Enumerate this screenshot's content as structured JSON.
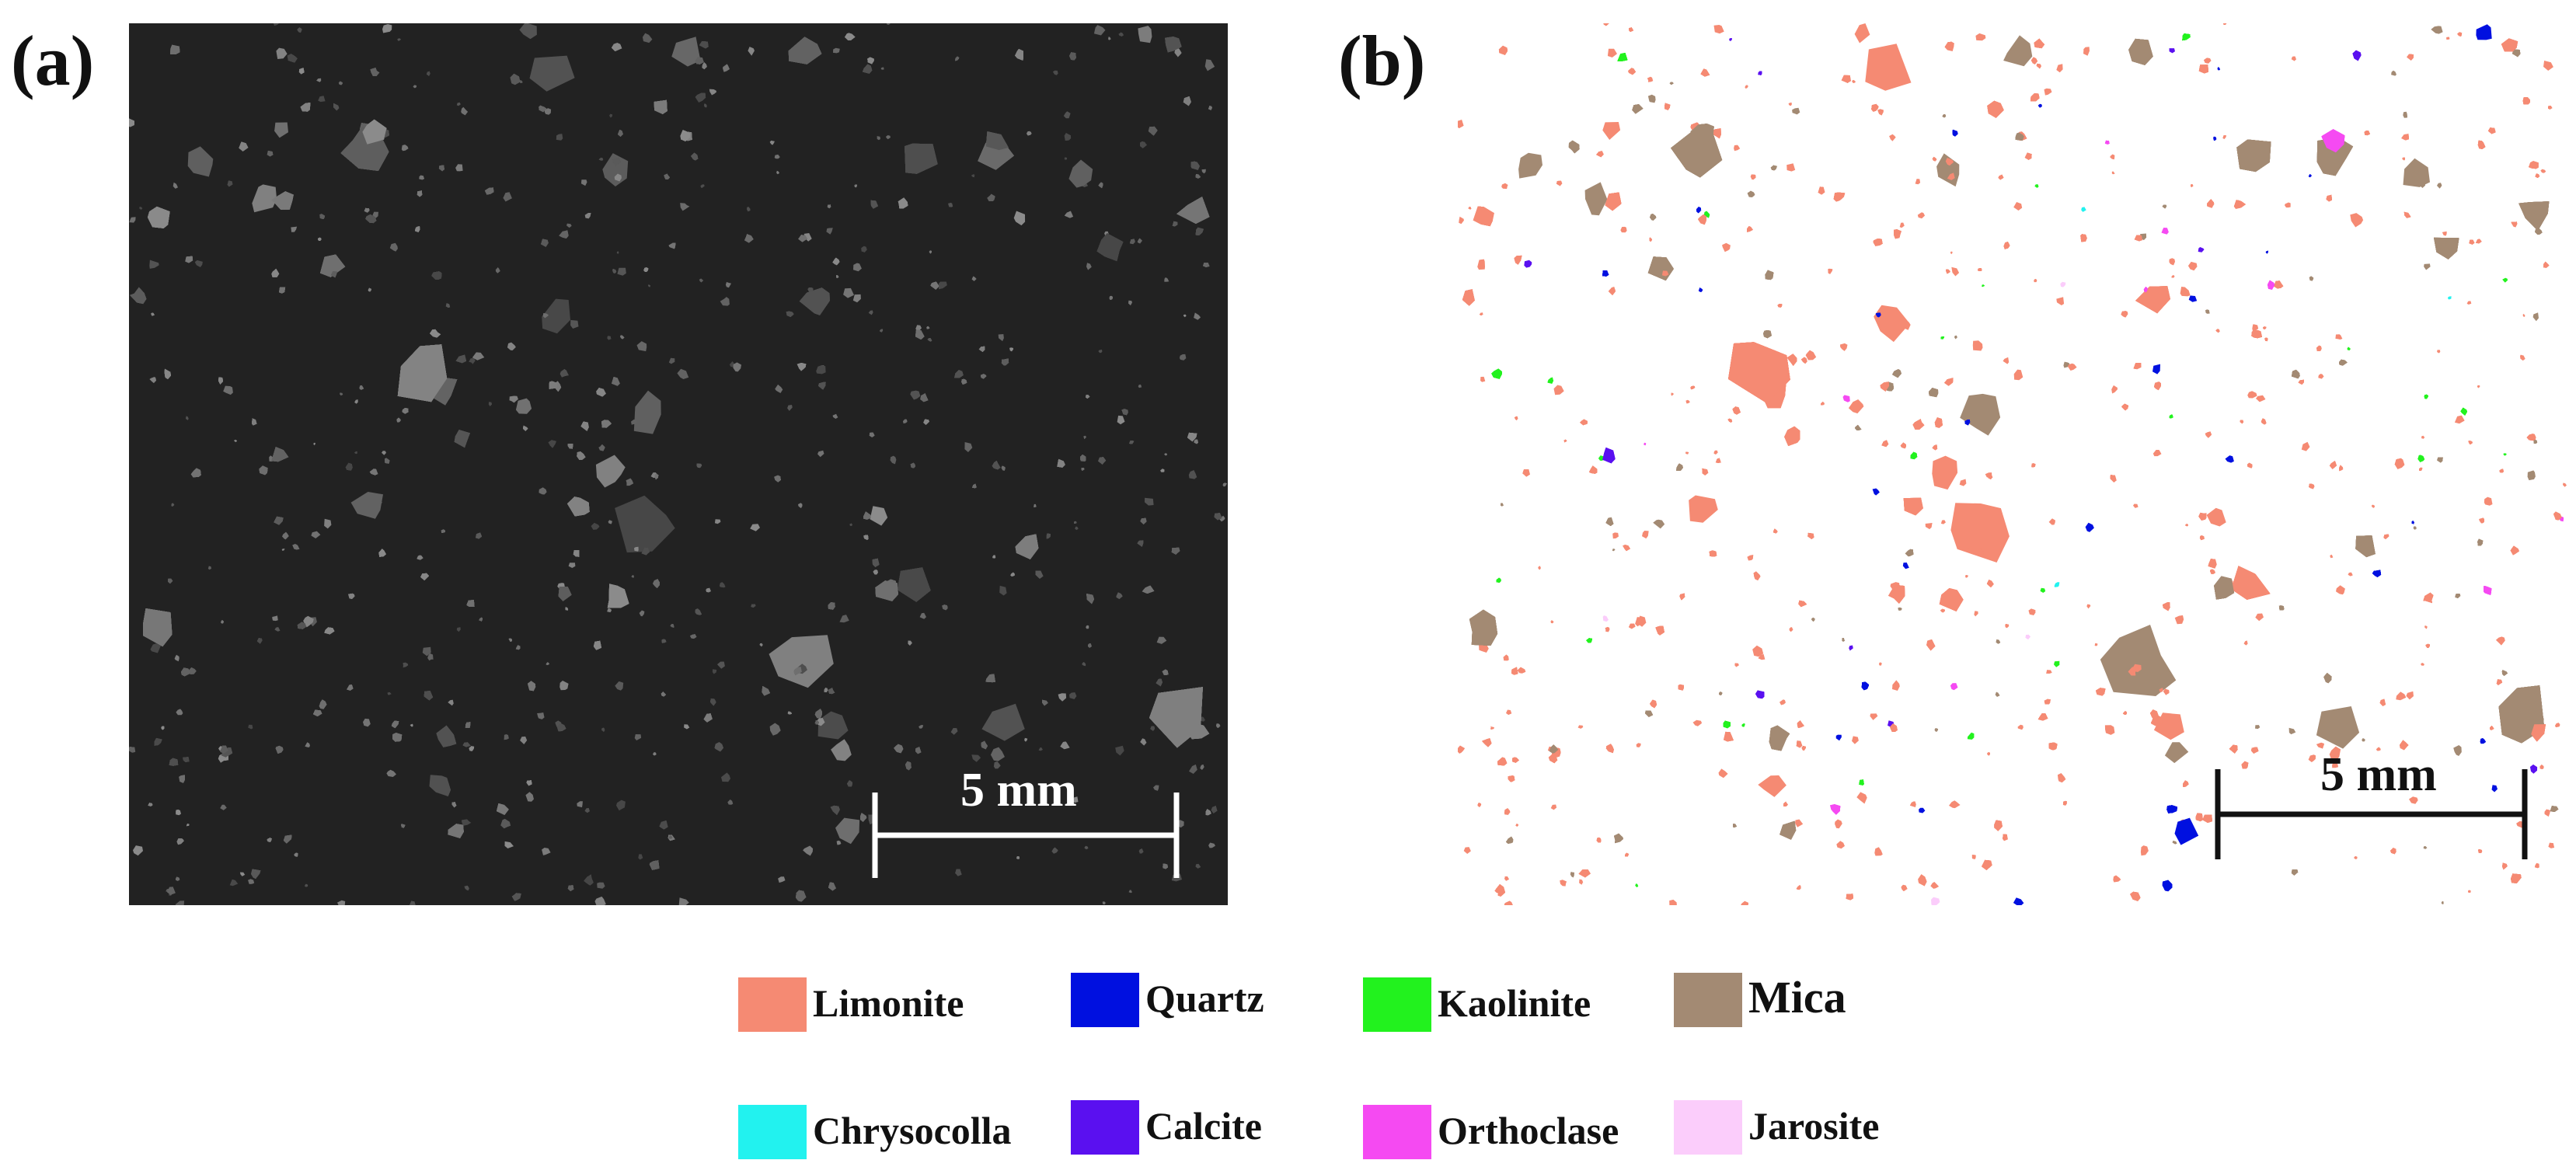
{
  "figure": {
    "panel_a": {
      "label": "(a)",
      "scalebar_text": "5 mm"
    },
    "panel_b": {
      "label": "(b)",
      "scalebar_text": "5 mm"
    },
    "legend": [
      {
        "name": "Limonite",
        "color": "#f58a73"
      },
      {
        "name": "Quartz",
        "color": "#0010e0"
      },
      {
        "name": "Kaolinite",
        "color": "#22f21e"
      },
      {
        "name": "Mica",
        "color": "#a38a73"
      },
      {
        "name": "Chrysocolla",
        "color": "#22f2ef"
      },
      {
        "name": "Calcite",
        "color": "#5a10f0"
      },
      {
        "name": "Orthoclase",
        "color": "#f54af2"
      },
      {
        "name": "Jarosite",
        "color": "#fbcdfb"
      }
    ]
  }
}
